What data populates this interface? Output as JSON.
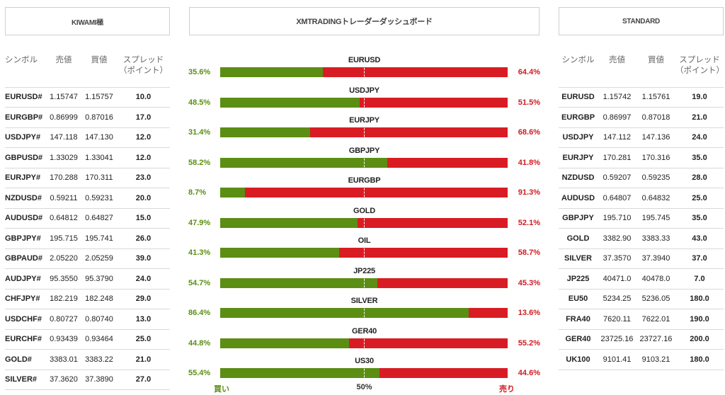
{
  "headers": {
    "left": "KIWAMI極",
    "center": "XMTRADINGトレーダーダッシュボード",
    "right": "STANDARD"
  },
  "left_table": {
    "columns": [
      "シンボル",
      "売値",
      "買値",
      "スプレッド（ポイント）"
    ],
    "rows": [
      [
        "EURUSD#",
        "1.15747",
        "1.15757",
        "10.0"
      ],
      [
        "EURGBP#",
        "0.86999",
        "0.87016",
        "17.0"
      ],
      [
        "USDJPY#",
        "147.118",
        "147.130",
        "12.0"
      ],
      [
        "GBPUSD#",
        "1.33029",
        "1.33041",
        "12.0"
      ],
      [
        "EURJPY#",
        "170.288",
        "170.311",
        "23.0"
      ],
      [
        "NZDUSD#",
        "0.59211",
        "0.59231",
        "20.0"
      ],
      [
        "AUDUSD#",
        "0.64812",
        "0.64827",
        "15.0"
      ],
      [
        "GBPJPY#",
        "195.715",
        "195.741",
        "26.0"
      ],
      [
        "GBPAUD#",
        "2.05220",
        "2.05259",
        "39.0"
      ],
      [
        "AUDJPY#",
        "95.3550",
        "95.3790",
        "24.0"
      ],
      [
        "CHFJPY#",
        "182.219",
        "182.248",
        "29.0"
      ],
      [
        "USDCHF#",
        "0.80727",
        "0.80740",
        "13.0"
      ],
      [
        "EURCHF#",
        "0.93439",
        "0.93464",
        "25.0"
      ],
      [
        "GOLD#",
        "3383.01",
        "3383.22",
        "21.0"
      ],
      [
        "SILVER#",
        "37.3620",
        "37.3890",
        "27.0"
      ]
    ]
  },
  "right_table": {
    "columns": [
      "シンボル",
      "売値",
      "買値",
      "スプレッド（ポイント）"
    ],
    "rows": [
      [
        "EURUSD",
        "1.15742",
        "1.15761",
        "19.0"
      ],
      [
        "EURGBP",
        "0.86997",
        "0.87018",
        "21.0"
      ],
      [
        "USDJPY",
        "147.112",
        "147.136",
        "24.0"
      ],
      [
        "EURJPY",
        "170.281",
        "170.316",
        "35.0"
      ],
      [
        "NZDUSD",
        "0.59207",
        "0.59235",
        "28.0"
      ],
      [
        "AUDUSD",
        "0.64807",
        "0.64832",
        "25.0"
      ],
      [
        "GBPJPY",
        "195.710",
        "195.745",
        "35.0"
      ],
      [
        "GOLD",
        "3382.90",
        "3383.33",
        "43.0"
      ],
      [
        "SILVER",
        "37.3570",
        "37.3940",
        "37.0"
      ],
      [
        "JP225",
        "40471.0",
        "40478.0",
        "7.0"
      ],
      [
        "EU50",
        "5234.25",
        "5236.05",
        "180.0"
      ],
      [
        "FRA40",
        "7620.11",
        "7622.01",
        "190.0"
      ],
      [
        "GER40",
        "23725.16",
        "23727.16",
        "200.0"
      ],
      [
        "UK100",
        "9101.41",
        "9103.21",
        "180.0"
      ]
    ]
  },
  "sentiment": [
    {
      "symbol": "EURUSD",
      "buy": 35.6,
      "sell": 64.4,
      "buy_label": "35.6%",
      "sell_label": "64.4%"
    },
    {
      "symbol": "USDJPY",
      "buy": 48.5,
      "sell": 51.5,
      "buy_label": "48.5%",
      "sell_label": "51.5%"
    },
    {
      "symbol": "EURJPY",
      "buy": 31.4,
      "sell": 68.6,
      "buy_label": "31.4%",
      "sell_label": "68.6%"
    },
    {
      "symbol": "GBPJPY",
      "buy": 58.2,
      "sell": 41.8,
      "buy_label": "58.2%",
      "sell_label": "41.8%"
    },
    {
      "symbol": "EURGBP",
      "buy": 8.7,
      "sell": 91.3,
      "buy_label": "8.7%",
      "sell_label": "91.3%"
    },
    {
      "symbol": "GOLD",
      "buy": 47.9,
      "sell": 52.1,
      "buy_label": "47.9%",
      "sell_label": "52.1%"
    },
    {
      "symbol": "OIL",
      "buy": 41.3,
      "sell": 58.7,
      "buy_label": "41.3%",
      "sell_label": "58.7%"
    },
    {
      "symbol": "JP225",
      "buy": 54.7,
      "sell": 45.3,
      "buy_label": "54.7%",
      "sell_label": "45.3%"
    },
    {
      "symbol": "SILVER",
      "buy": 86.4,
      "sell": 13.6,
      "buy_label": "86.4%",
      "sell_label": "13.6%"
    },
    {
      "symbol": "GER40",
      "buy": 44.8,
      "sell": 55.2,
      "buy_label": "44.8%",
      "sell_label": "55.2%"
    },
    {
      "symbol": "US30",
      "buy": 55.4,
      "sell": 44.6,
      "buy_label": "55.4%",
      "sell_label": "44.6%"
    }
  ],
  "footer": {
    "buy": "買い",
    "mid": "50%",
    "sell": "売り"
  },
  "colors": {
    "buy": "#5b8e12",
    "sell": "#d91c24",
    "spread": "#d01a20"
  }
}
